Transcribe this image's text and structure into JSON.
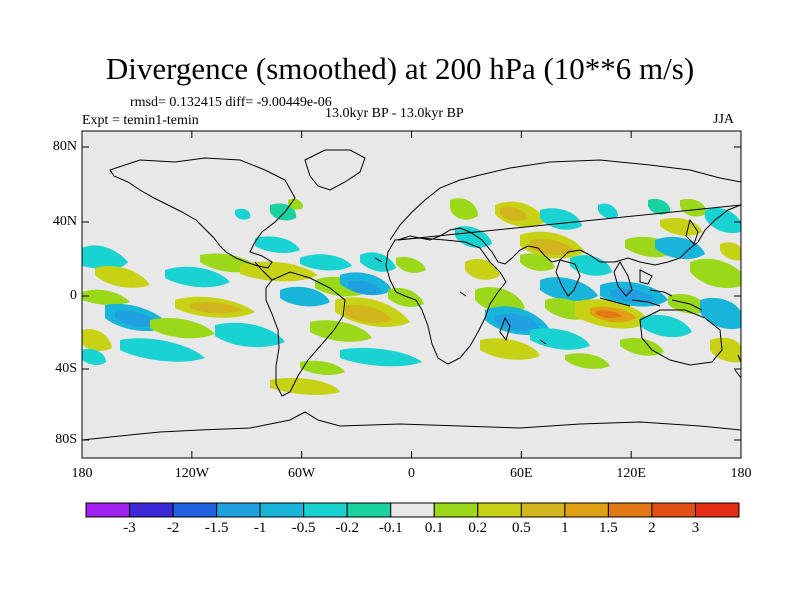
{
  "title": "Divergence (smoothed) at 200 hPa (10**6 m/s)",
  "stats": "rmsd= 0.132415 diff= -9.00449e-06",
  "experiment": "Expt = temin1-temin",
  "period": "13.0kyr BP - 13.0kyr BP",
  "season": "JJA",
  "colors": {
    "land_bg": "#e8e8e8",
    "coast": "#000000"
  },
  "lat_labels": [
    "80N",
    "40N",
    "0",
    "40S",
    "80S"
  ],
  "lon_labels": [
    "180",
    "120W",
    "60W",
    "0",
    "60E",
    "120E",
    "180"
  ],
  "colorbar": {
    "colors": [
      "#a020f0",
      "#3b28d6",
      "#1f63e0",
      "#1fa0e0",
      "#19b4da",
      "#19d2d2",
      "#19d2a0",
      "#e8e8e8",
      "#9bd819",
      "#c8d214",
      "#d2b41e",
      "#e0a014",
      "#e07814",
      "#e05014",
      "#e62d14"
    ],
    "labels": [
      "-3",
      "-2",
      "-1.5",
      "-1",
      "-0.5",
      "-0.2",
      "-0.1",
      "0.1",
      "0.2",
      "0.5",
      "1",
      "1.5",
      "2",
      "3"
    ]
  }
}
